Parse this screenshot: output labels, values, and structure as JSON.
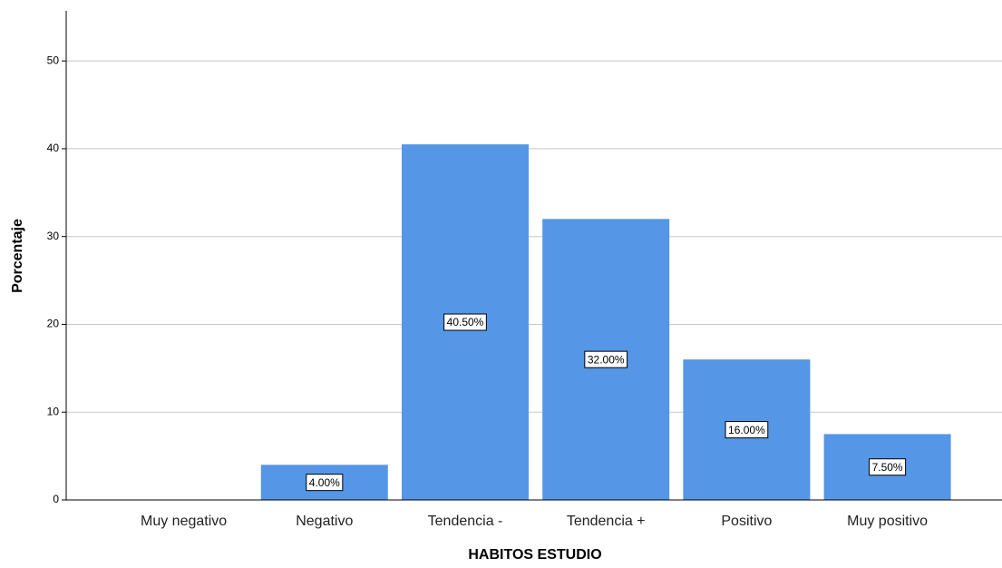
{
  "chart_data": {
    "type": "bar",
    "x_label": "HABITOS ESTUDIO",
    "y_label": "Porcentaje",
    "categories": [
      "Muy negativo",
      "Negativo",
      "Tendencia -",
      "Tendencia +",
      "Positivo",
      "Muy positivo"
    ],
    "values": [
      0,
      4,
      40.5,
      32,
      16,
      7.5
    ],
    "value_labels": [
      null,
      "4.00%",
      "40.50%",
      "32.00%",
      "16.00%",
      "7.50%"
    ],
    "color": "#5596e6",
    "ylim": [
      0,
      55.7
    ],
    "yticks": [
      0,
      10,
      20,
      30,
      40,
      50
    ],
    "grid": true
  }
}
